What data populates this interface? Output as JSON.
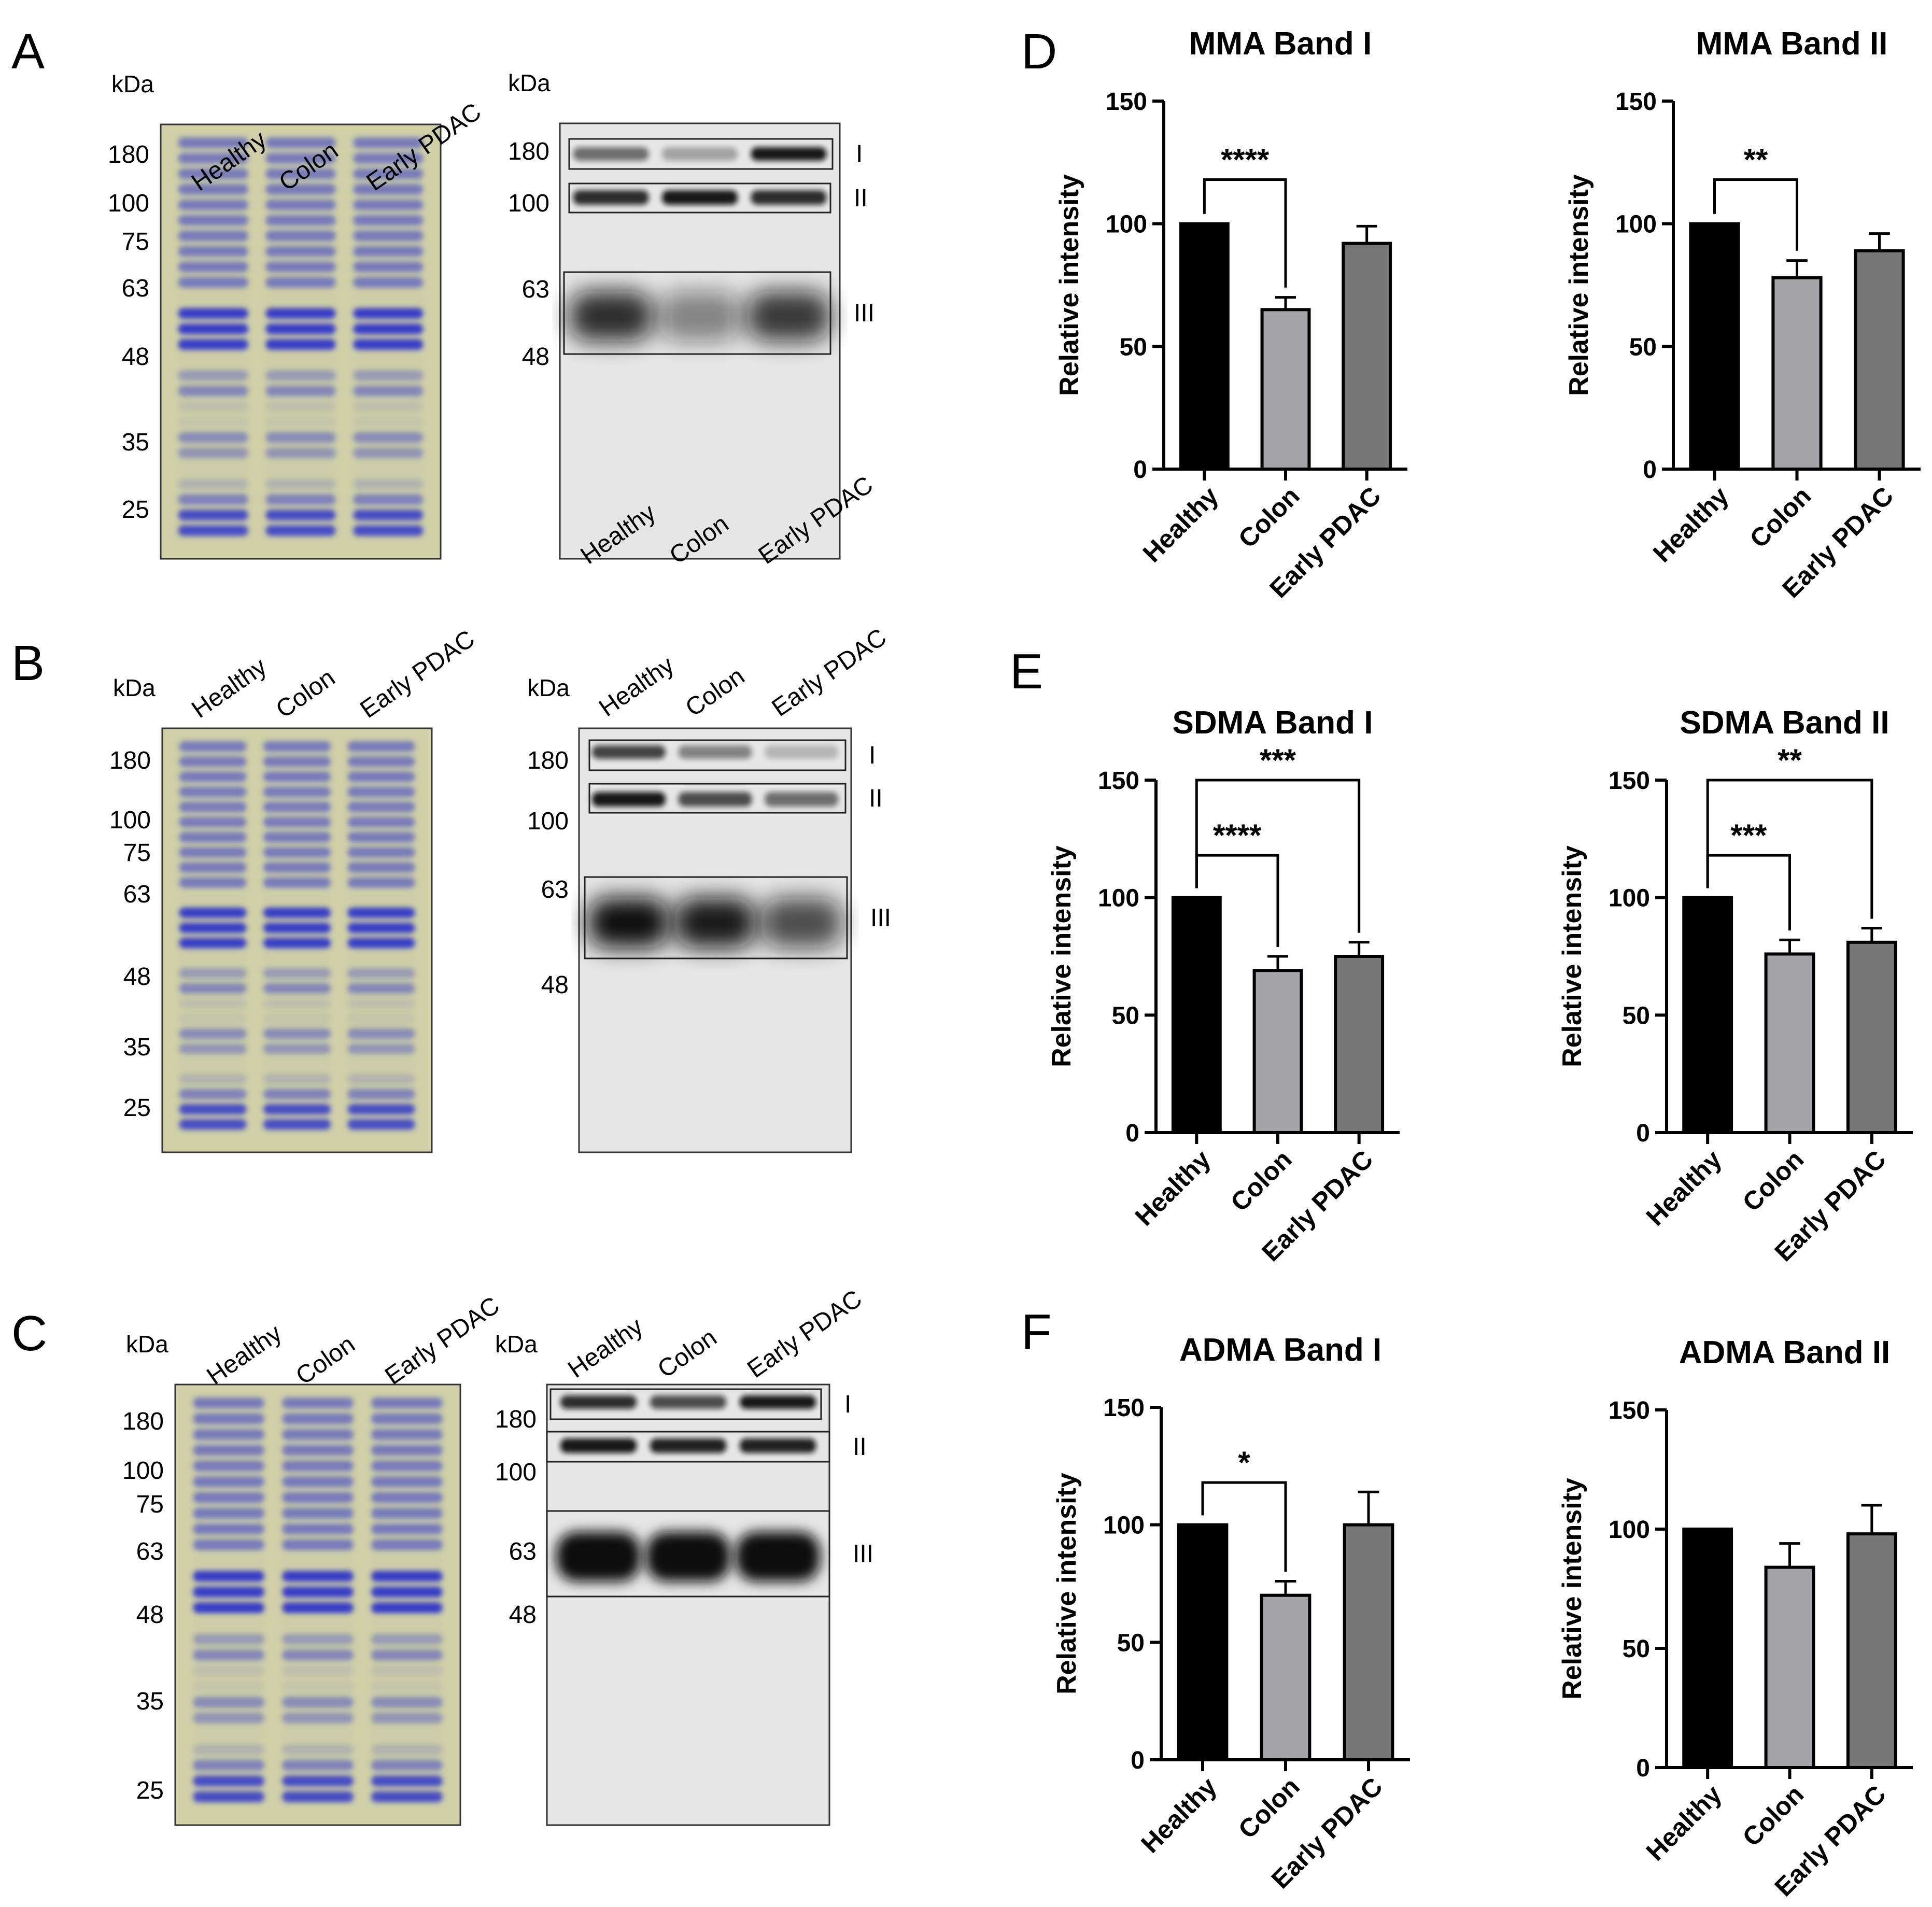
{
  "figure": {
    "panel_letters": [
      "A",
      "B",
      "C",
      "D",
      "E",
      "F"
    ]
  },
  "gels": {
    "kda_label": "kDa",
    "lane_labels": [
      "Healthy",
      "Colon",
      "Early PDAC"
    ],
    "band_labels": [
      "I",
      "II",
      "III"
    ],
    "panels": [
      {
        "id": "A",
        "coomassie_markers": [
          "180",
          "100",
          "75",
          "63",
          "48",
          "35",
          "25"
        ],
        "blot_markers": [
          "180",
          "100",
          "63",
          "48"
        ]
      },
      {
        "id": "B",
        "coomassie_markers": [
          "180",
          "100",
          "75",
          "63",
          "48",
          "35",
          "25"
        ],
        "blot_markers": [
          "180",
          "100",
          "63",
          "48"
        ]
      },
      {
        "id": "C",
        "coomassie_markers": [
          "180",
          "100",
          "75",
          "63",
          "48",
          "35",
          "25"
        ],
        "blot_markers": [
          "180",
          "100",
          "63",
          "48"
        ]
      }
    ],
    "colors": {
      "coomassie_bg": "#cfd0a8",
      "coomassie_band": "#2f35c8",
      "blot_bg": "#e6e6e6",
      "blot_band": "#111111"
    }
  },
  "chart_data": [
    {
      "panel": "D",
      "type": "bar",
      "title": "MMA Band I",
      "ylabel": "Relative intensity",
      "ylim": [
        0,
        150
      ],
      "yticks": [
        0,
        50,
        100,
        150
      ],
      "categories": [
        "Healthy",
        "Colon",
        "Early PDAC"
      ],
      "values": [
        100,
        65,
        92
      ],
      "errors": [
        0,
        5,
        7
      ],
      "bar_colors": [
        "#000000",
        "#a3a3a8",
        "#777777"
      ],
      "significance": [
        {
          "from": 0,
          "to": 1,
          "label": "****"
        }
      ]
    },
    {
      "panel": "D",
      "type": "bar",
      "title": "MMA Band II",
      "ylabel": "Relative intensity",
      "ylim": [
        0,
        150
      ],
      "yticks": [
        0,
        50,
        100,
        150
      ],
      "categories": [
        "Healthy",
        "Colon",
        "Early PDAC"
      ],
      "values": [
        100,
        78,
        89
      ],
      "errors": [
        0,
        7,
        7
      ],
      "bar_colors": [
        "#000000",
        "#a3a3a8",
        "#777777"
      ],
      "significance": [
        {
          "from": 0,
          "to": 1,
          "label": "**"
        }
      ]
    },
    {
      "panel": "E",
      "type": "bar",
      "title": "SDMA Band I",
      "ylabel": "Relative intensity",
      "ylim": [
        0,
        150
      ],
      "yticks": [
        0,
        50,
        100,
        150
      ],
      "categories": [
        "Healthy",
        "Colon",
        "Early PDAC"
      ],
      "values": [
        100,
        69,
        75
      ],
      "errors": [
        0,
        6,
        6
      ],
      "bar_colors": [
        "#000000",
        "#a3a3a8",
        "#777777"
      ],
      "significance": [
        {
          "from": 0,
          "to": 1,
          "label": "****"
        },
        {
          "from": 0,
          "to": 2,
          "label": "***"
        }
      ]
    },
    {
      "panel": "E",
      "type": "bar",
      "title": "SDMA Band II",
      "ylabel": "Relative intensity",
      "ylim": [
        0,
        150
      ],
      "yticks": [
        0,
        50,
        100,
        150
      ],
      "categories": [
        "Healthy",
        "Colon",
        "Early PDAC"
      ],
      "values": [
        100,
        76,
        81
      ],
      "errors": [
        0,
        6,
        6
      ],
      "bar_colors": [
        "#000000",
        "#a3a3a8",
        "#777777"
      ],
      "significance": [
        {
          "from": 0,
          "to": 1,
          "label": "***"
        },
        {
          "from": 0,
          "to": 2,
          "label": "**"
        }
      ]
    },
    {
      "panel": "F",
      "type": "bar",
      "title": "ADMA Band I",
      "ylabel": "Relative intensity",
      "ylim": [
        0,
        150
      ],
      "yticks": [
        0,
        50,
        100,
        150
      ],
      "categories": [
        "Healthy",
        "Colon",
        "Early PDAC"
      ],
      "values": [
        100,
        70,
        100
      ],
      "errors": [
        0,
        6,
        14
      ],
      "bar_colors": [
        "#000000",
        "#a3a3a8",
        "#777777"
      ],
      "significance": [
        {
          "from": 0,
          "to": 1,
          "label": "*"
        }
      ]
    },
    {
      "panel": "F",
      "type": "bar",
      "title": "ADMA Band II",
      "ylabel": "Relative intensity",
      "ylim": [
        0,
        150
      ],
      "yticks": [
        0,
        50,
        100,
        150
      ],
      "categories": [
        "Healthy",
        "Colon",
        "Early PDAC"
      ],
      "values": [
        100,
        84,
        98
      ],
      "errors": [
        0,
        10,
        12
      ],
      "bar_colors": [
        "#000000",
        "#a3a3a8",
        "#777777"
      ],
      "significance": []
    }
  ]
}
